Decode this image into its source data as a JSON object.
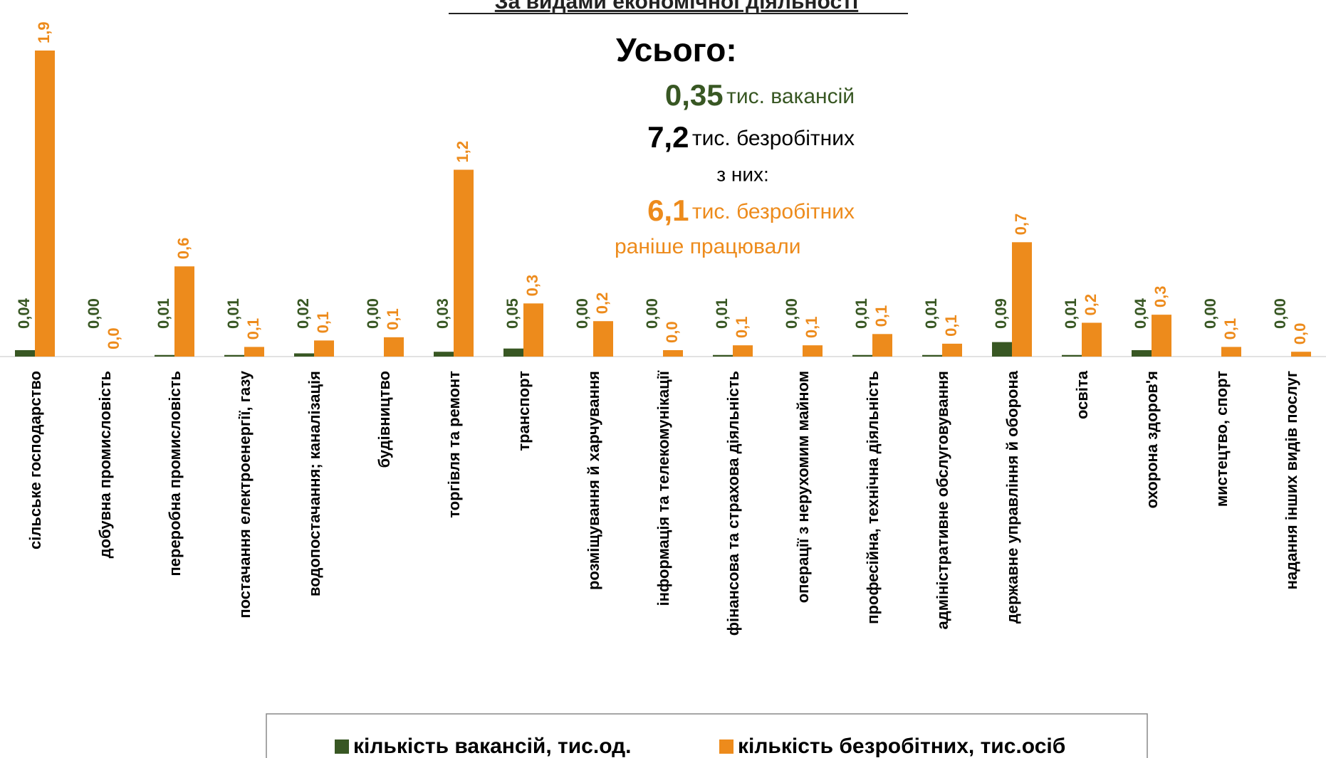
{
  "chart_data": {
    "type": "bar",
    "title": "За видами економічної діяльності",
    "summary": {
      "heading": "Усього:",
      "lines": [
        {
          "number": "0,35",
          "text": "тис. вакансій"
        },
        {
          "number": "7,2",
          "text": "тис. безробітних"
        },
        {
          "number": "",
          "text": "з них:"
        },
        {
          "number": "6,1",
          "text": "тис. безробітних"
        },
        {
          "number": "",
          "text": "раніше працювали"
        }
      ]
    },
    "categories": [
      "сільське господарство",
      "добувна промисловість",
      "переробна промисловість",
      "постачання електроенергії, газу",
      "водопостачання; каналізація",
      "будівництво",
      "торгівля та ремонт",
      "транспорт",
      "розміщування й харчування",
      "інформація та телекомунікації",
      "фінансова та страхова діяльність",
      "операції з нерухомим майном",
      "професійна, технічна діяльність",
      "адміністративне обслуговування",
      "державне управління й оборона",
      "освіта",
      "охорона здоров'я",
      "мистецтво, спорт",
      "надання інших видів послуг"
    ],
    "series": [
      {
        "name": "кількість вакансій, тис.од.",
        "color": "#385723",
        "values": [
          0.04,
          0,
          0.01,
          0.01,
          0.02,
          0,
          0.03,
          0.05,
          0,
          0,
          0.01,
          0,
          0.01,
          0.01,
          0.09,
          0.01,
          0.04,
          0,
          0
        ],
        "value_labels": [
          "0,04",
          "0,00",
          "0,01",
          "0,01",
          "0,02",
          "0,00",
          "0,03",
          "0,05",
          "0,00",
          "0,00",
          "0,01",
          "0,00",
          "0,01",
          "0,01",
          "0,09",
          "0,01",
          "0,04",
          "0,00",
          "0,00"
        ]
      },
      {
        "name": "кількість безробітних, тис.осіб",
        "color": "#ED8B1C",
        "values": [
          1.9,
          0,
          0.56,
          0.06,
          0.1,
          0.12,
          1.16,
          0.33,
          0.22,
          0.04,
          0.07,
          0.07,
          0.14,
          0.08,
          0.71,
          0.21,
          0.26,
          0.06,
          0.03
        ],
        "value_labels": [
          "1,9",
          "0,0",
          "0,6",
          "0,1",
          "0,1",
          "0,1",
          "1,2",
          "0,3",
          "0,2",
          "0,0",
          "0,1",
          "0,1",
          "0,1",
          "0,1",
          "0,7",
          "0,2",
          "0,3",
          "0,1",
          "0,0"
        ]
      }
    ],
    "ylim": [
      0,
      1.9
    ],
    "legend": "bottom"
  }
}
